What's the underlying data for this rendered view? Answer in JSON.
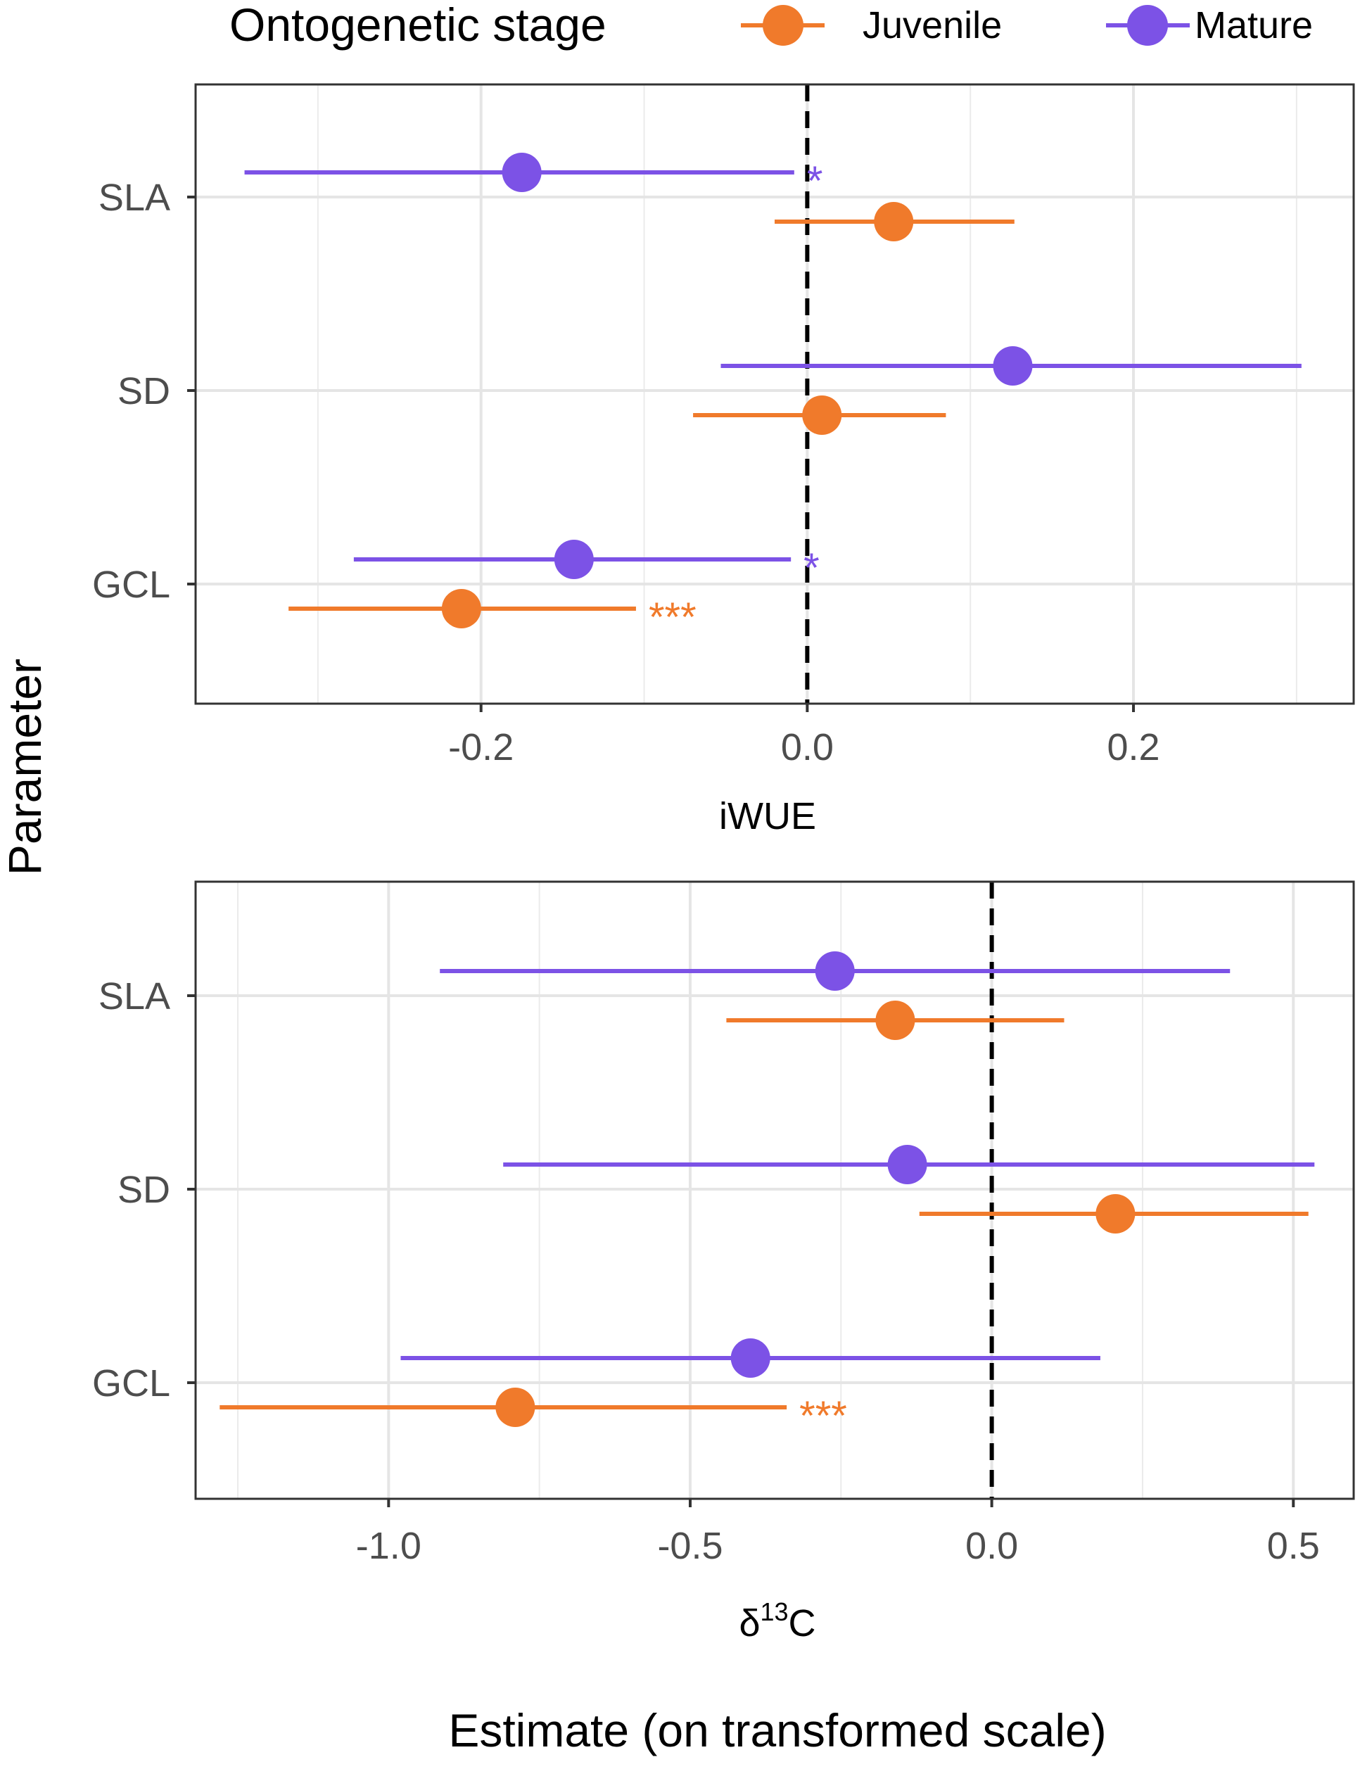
{
  "legend": {
    "title": "Ontogenetic stage",
    "items": [
      {
        "label": "Juvenile",
        "color": "#F07A2B"
      },
      {
        "label": "Mature",
        "color": "#7C52E6"
      }
    ]
  },
  "y_axis_title": "Parameter",
  "x_axis_title": "Estimate (on transformed scale)",
  "chart_data": [
    {
      "type": "forest",
      "panel_label": "iWUE",
      "categories": [
        "SLA",
        "SD",
        "GCL"
      ],
      "xlim": [
        -0.375,
        0.335
      ],
      "xticks": [
        -0.2,
        0.0,
        0.2
      ],
      "xtick_labels": [
        "-0.2",
        "0.0",
        "0.2"
      ],
      "reference_line": 0,
      "grid": true,
      "series": [
        {
          "name": "Mature",
          "color": "#7C52E6",
          "points": [
            {
              "category": "SLA",
              "estimate": -0.175,
              "lower": -0.345,
              "upper": -0.008,
              "sig": "*"
            },
            {
              "category": "SD",
              "estimate": 0.126,
              "lower": -0.053,
              "upper": 0.303,
              "sig": ""
            },
            {
              "category": "GCL",
              "estimate": -0.143,
              "lower": -0.278,
              "upper": -0.01,
              "sig": "*"
            }
          ]
        },
        {
          "name": "Juvenile",
          "color": "#F07A2B",
          "points": [
            {
              "category": "SLA",
              "estimate": 0.053,
              "lower": -0.02,
              "upper": 0.127,
              "sig": ""
            },
            {
              "category": "SD",
              "estimate": 0.009,
              "lower": -0.07,
              "upper": 0.085,
              "sig": ""
            },
            {
              "category": "GCL",
              "estimate": -0.212,
              "lower": -0.318,
              "upper": -0.105,
              "sig": "***"
            }
          ]
        }
      ]
    },
    {
      "type": "forest",
      "panel_label": "δ13C",
      "categories": [
        "SLA",
        "SD",
        "GCL"
      ],
      "xlim": [
        -1.32,
        0.6
      ],
      "xticks": [
        -1.0,
        -0.5,
        0.0,
        0.5
      ],
      "xtick_labels": [
        "-1.0",
        "-0.5",
        "0.0",
        "0.5"
      ],
      "reference_line": 0,
      "grid": true,
      "series": [
        {
          "name": "Mature",
          "color": "#7C52E6",
          "points": [
            {
              "category": "SLA",
              "estimate": -0.26,
              "lower": -0.915,
              "upper": 0.395,
              "sig": ""
            },
            {
              "category": "SD",
              "estimate": -0.14,
              "lower": -0.81,
              "upper": 0.535,
              "sig": ""
            },
            {
              "category": "GCL",
              "estimate": -0.4,
              "lower": -0.98,
              "upper": 0.18,
              "sig": ""
            }
          ]
        },
        {
          "name": "Juvenile",
          "color": "#F07A2B",
          "points": [
            {
              "category": "SLA",
              "estimate": -0.16,
              "lower": -0.44,
              "upper": 0.12,
              "sig": ""
            },
            {
              "category": "SD",
              "estimate": 0.205,
              "lower": -0.12,
              "upper": 0.525,
              "sig": ""
            },
            {
              "category": "GCL",
              "estimate": -0.79,
              "lower": -1.28,
              "upper": -0.34,
              "sig": "***"
            }
          ]
        }
      ]
    }
  ]
}
